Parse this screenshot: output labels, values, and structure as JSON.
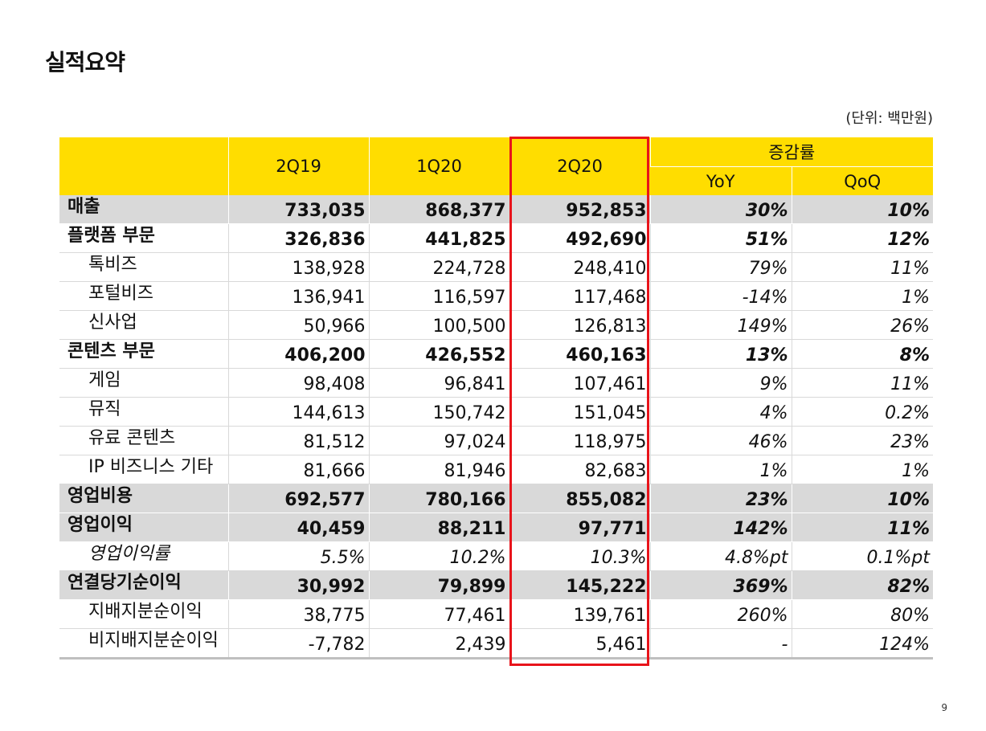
{
  "title": "실적요약",
  "unit": "(단위: 백만원)",
  "page_number": "9",
  "colors": {
    "header": "#ffdd00",
    "shade": "#d9d9d9",
    "highlight": "#e8141b"
  },
  "headers": {
    "periods": [
      "2Q19",
      "1Q20",
      "2Q20"
    ],
    "growth": "증감률",
    "yoy": "YoY",
    "qoq": "QoQ"
  },
  "rows": [
    {
      "label": "매출",
      "type": "major",
      "values": [
        "733,035",
        "868,377",
        "952,853",
        "30%",
        "10%"
      ]
    },
    {
      "label": "플랫폼 부문",
      "type": "segment",
      "values": [
        "326,836",
        "441,825",
        "492,690",
        "51%",
        "12%"
      ]
    },
    {
      "label": "톡비즈",
      "type": "sub",
      "values": [
        "138,928",
        "224,728",
        "248,410",
        "79%",
        "11%"
      ]
    },
    {
      "label": "포털비즈",
      "type": "sub",
      "values": [
        "136,941",
        "116,597",
        "117,468",
        "-14%",
        "1%"
      ]
    },
    {
      "label": "신사업",
      "type": "sub",
      "values": [
        "50,966",
        "100,500",
        "126,813",
        "149%",
        "26%"
      ]
    },
    {
      "label": "콘텐츠 부문",
      "type": "segment",
      "values": [
        "406,200",
        "426,552",
        "460,163",
        "13%",
        "8%"
      ]
    },
    {
      "label": "게임",
      "type": "sub",
      "values": [
        "98,408",
        "96,841",
        "107,461",
        "9%",
        "11%"
      ]
    },
    {
      "label": "뮤직",
      "type": "sub",
      "values": [
        "144,613",
        "150,742",
        "151,045",
        "4%",
        "0.2%"
      ]
    },
    {
      "label": "유료 콘텐츠",
      "type": "sub",
      "values": [
        "81,512",
        "97,024",
        "118,975",
        "46%",
        "23%"
      ]
    },
    {
      "label": "IP 비즈니스 기타",
      "type": "sub",
      "values": [
        "81,666",
        "81,946",
        "82,683",
        "1%",
        "1%"
      ]
    },
    {
      "label": "영업비용",
      "type": "major",
      "values": [
        "692,577",
        "780,166",
        "855,082",
        "23%",
        "10%"
      ]
    },
    {
      "label": "영업이익",
      "type": "major",
      "values": [
        "40,459",
        "88,211",
        "97,771",
        "142%",
        "11%"
      ]
    },
    {
      "label": "영업이익률",
      "type": "ratio",
      "values": [
        "5.5%",
        "10.2%",
        "10.3%",
        "4.8%pt",
        "0.1%pt"
      ]
    },
    {
      "label": "연결당기순이익",
      "type": "major",
      "values": [
        "30,992",
        "79,899",
        "145,222",
        "369%",
        "82%"
      ]
    },
    {
      "label": "지배지분순이익",
      "type": "sub",
      "values": [
        "38,775",
        "77,461",
        "139,761",
        "260%",
        "80%"
      ]
    },
    {
      "label": "비지배지분순이익",
      "type": "sub",
      "values": [
        "-7,782",
        "2,439",
        "5,461",
        "-",
        "124%"
      ]
    }
  ]
}
